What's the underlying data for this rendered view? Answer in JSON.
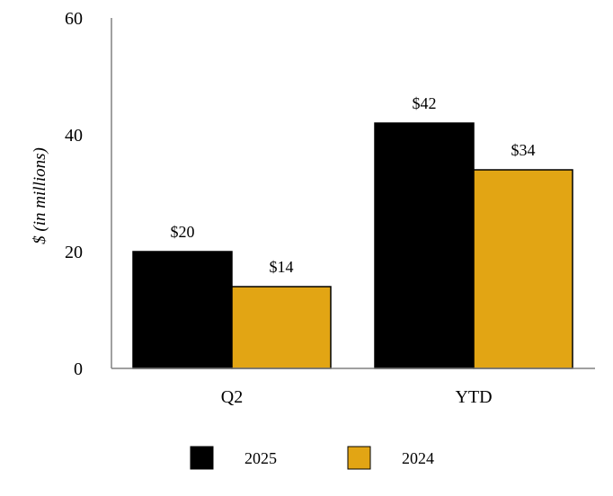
{
  "chart_data": {
    "type": "bar",
    "title": "",
    "xlabel": "",
    "ylabel": "$ (in millions)",
    "ylim": [
      0,
      60
    ],
    "yticks": [
      0,
      20,
      40,
      60
    ],
    "grid": false,
    "legend_position": "bottom",
    "categories": [
      "Q2",
      "YTD"
    ],
    "series": [
      {
        "name": "2025",
        "color": "#000000",
        "values": [
          20,
          42
        ],
        "labels": [
          "$20",
          "$42"
        ]
      },
      {
        "name": "2024",
        "color": "#E2A514",
        "values": [
          14,
          34
        ],
        "labels": [
          "$14",
          "$34"
        ]
      }
    ]
  }
}
